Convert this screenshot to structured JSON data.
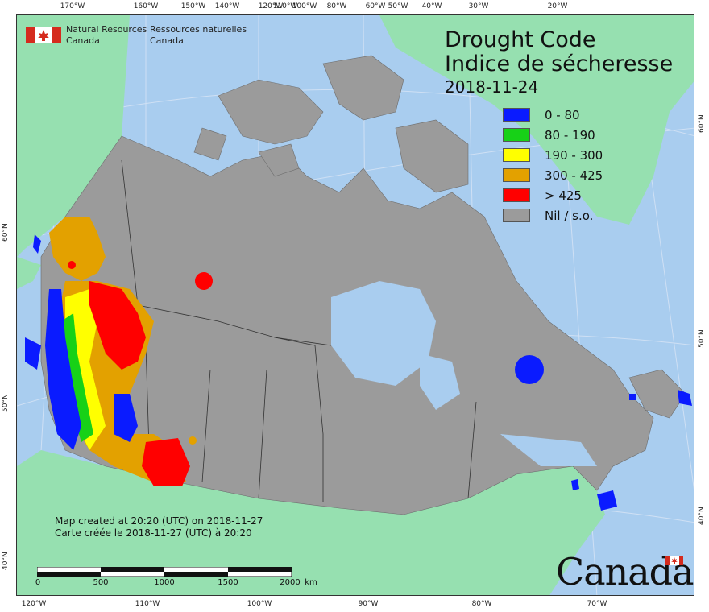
{
  "header": {
    "org_en_line1": "Natural Resources",
    "org_en_line2": "Canada",
    "org_fr_line1": "Ressources naturelles",
    "org_fr_line2": "Canada",
    "title_en": "Drought Code",
    "title_fr": "Indice de sécheresse",
    "date": "2018-11-24"
  },
  "legend": [
    {
      "label": "0 - 80",
      "color": "#0a1bff"
    },
    {
      "label": "80 - 190",
      "color": "#17d117"
    },
    {
      "label": "190 - 300",
      "color": "#ffff00"
    },
    {
      "label": "300 - 425",
      "color": "#e3a100"
    },
    {
      "label": "> 425",
      "color": "#ff0000"
    },
    {
      "label": "Nil / s.o.",
      "color": "#9b9b9b"
    }
  ],
  "credit": {
    "line_en": "Map created at 20:20 (UTC) on 2018-11-27",
    "line_fr": "Carte créée le 2018-11-27 (UTC) à 20:20"
  },
  "scale": {
    "labels": [
      "0",
      "500",
      "1000",
      "1500",
      "2000",
      "km"
    ]
  },
  "graticule": {
    "top_ticks": [
      "170°W",
      "160°W",
      "150°W",
      "140°W",
      "120°W",
      "100°W",
      "110°W",
      "80°W",
      "60°W",
      "50°W",
      "40°W",
      "30°W",
      "20°W"
    ],
    "bottom_ticks": [
      "120°W",
      "110°W",
      "100°W",
      "90°W",
      "80°W",
      "70°W"
    ],
    "left_ticks": [
      "60°N",
      "50°N",
      "40°N"
    ],
    "right_ticks": [
      "60°N",
      "50°N",
      "40°N"
    ]
  },
  "wordmark": "Canada",
  "colors": {
    "ocean": "#a9cdef",
    "land_other": "#96e0b0",
    "land_canada": "#9b9b9b"
  }
}
